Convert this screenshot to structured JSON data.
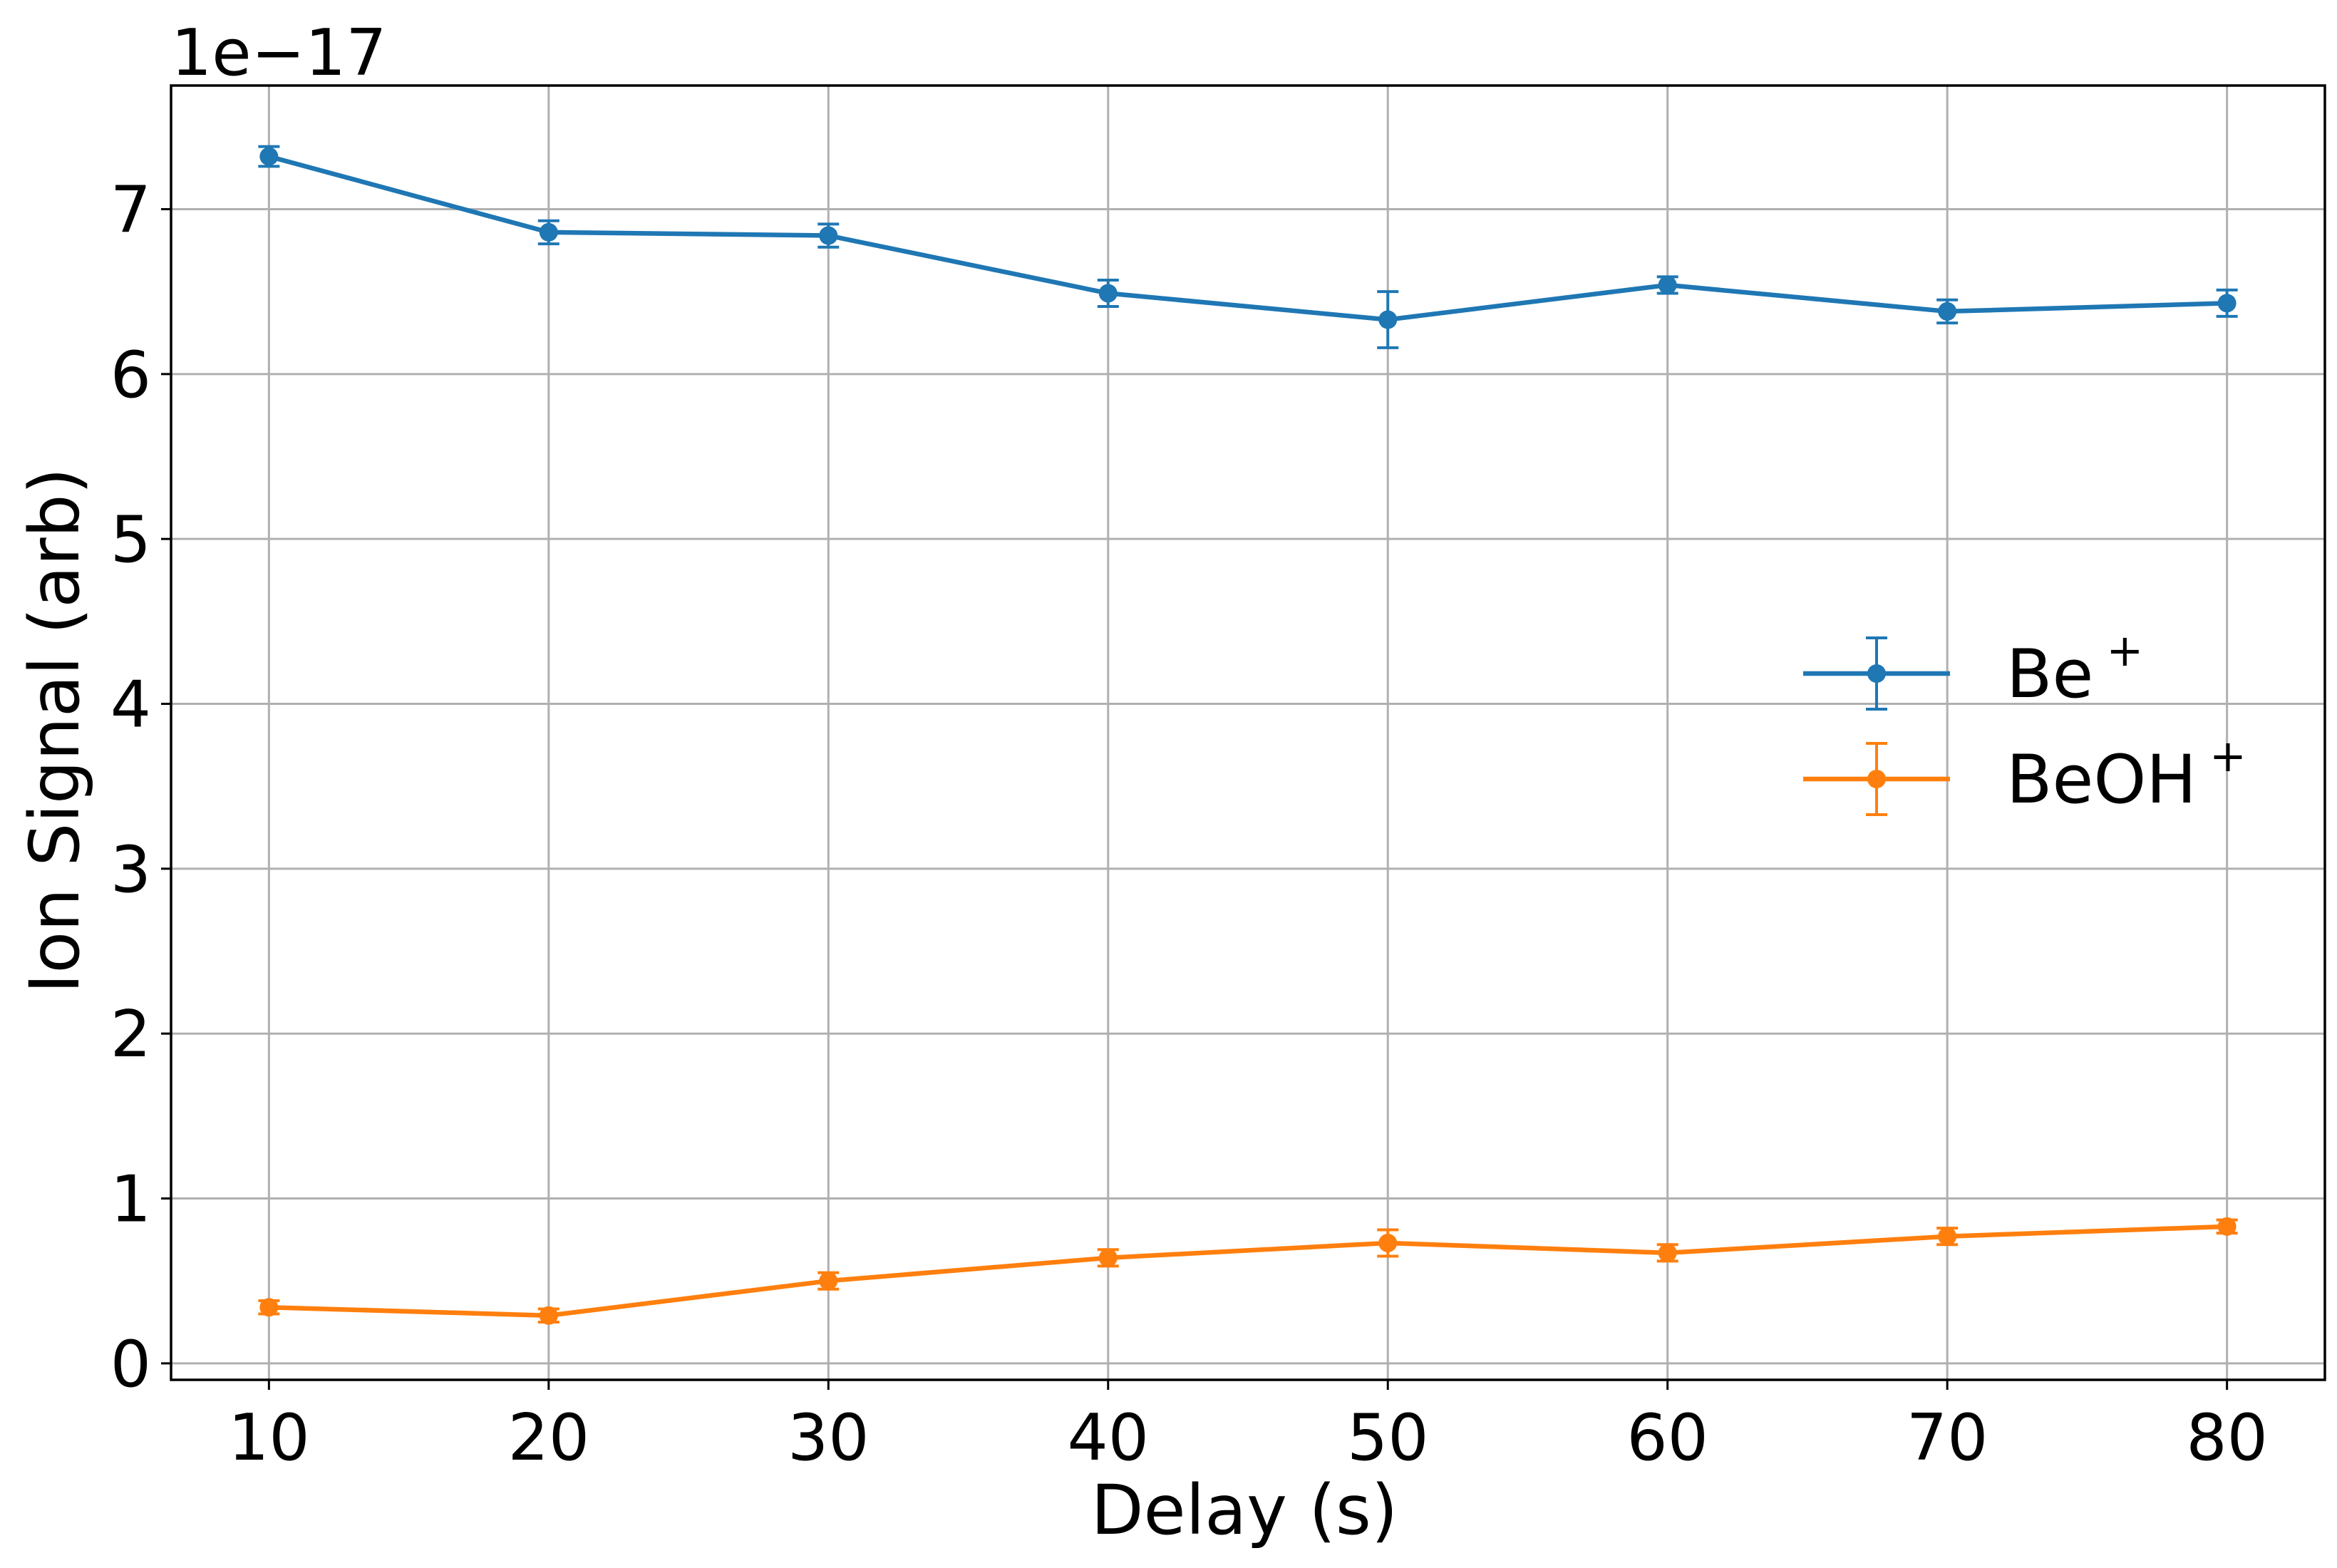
{
  "chart_data": {
    "type": "line",
    "xlabel": "Delay (s)",
    "ylabel": "Ion Signal (arb)",
    "y_exponent_label": "1e−17",
    "x": [
      10,
      20,
      30,
      40,
      50,
      60,
      70,
      80
    ],
    "xlim": [
      6.5,
      83.5
    ],
    "ylim": [
      -0.1,
      7.75
    ],
    "x_ticks": [
      10,
      20,
      30,
      40,
      50,
      60,
      70,
      80
    ],
    "y_ticks": [
      0,
      1,
      2,
      3,
      4,
      5,
      6,
      7
    ],
    "grid": true,
    "legend_position": "center-right",
    "series": [
      {
        "name": "Be",
        "name_sup": "+",
        "color": "#1f77b4",
        "values": [
          7.32,
          6.86,
          6.84,
          6.49,
          6.33,
          6.54,
          6.38,
          6.43
        ],
        "errors": [
          0.06,
          0.07,
          0.07,
          0.08,
          0.17,
          0.05,
          0.07,
          0.08
        ]
      },
      {
        "name": "BeOH",
        "name_sup": "+",
        "color": "#ff7f0e",
        "values": [
          0.34,
          0.29,
          0.5,
          0.64,
          0.73,
          0.67,
          0.77,
          0.83
        ],
        "errors": [
          0.04,
          0.04,
          0.05,
          0.05,
          0.08,
          0.05,
          0.05,
          0.04
        ]
      }
    ]
  }
}
